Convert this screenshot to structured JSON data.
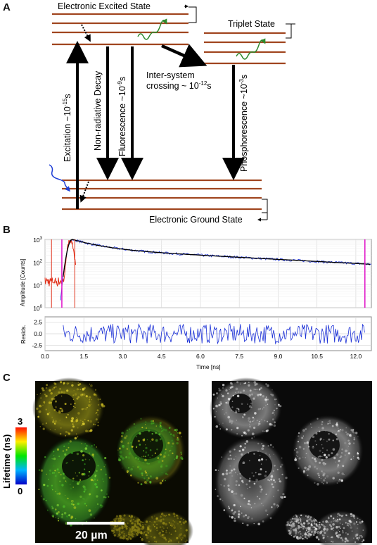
{
  "panels": {
    "a": "A",
    "b": "B",
    "c": "C"
  },
  "jablonski": {
    "excited_state": "Electronic Excited State",
    "triplet_state": "Triplet State",
    "ground_state": "Electronic Ground State",
    "excitation_prefix": "Excitation ~10",
    "excitation_exp": "-15",
    "excitation_unit": "s",
    "nonrad": "Non-radiative Decay",
    "fluor_prefix": "Fluorescence ~10",
    "fluor_exp": "-9",
    "fluor_unit": "s",
    "isc_line1": "Inter-system",
    "isc_line2_prefix": "crossing ~ 10",
    "isc_exp": "-12",
    "isc_unit": "s",
    "phos_prefix": "Phosphorescence ~10",
    "phos_exp": "-3",
    "phos_unit": "s",
    "level_color": "#a0451f",
    "wave_green": "#2e8b2e",
    "wave_blue": "#1f3fd6"
  },
  "decay_plot": {
    "ylabel": "Amplitude [Counts]",
    "resid_label": "Resids.",
    "xlabel": "Time [ns]",
    "x_ticks": [
      "0.0",
      "1.5",
      "3.0",
      "4.5",
      "6.0",
      "7.5",
      "9.0",
      "10.5",
      "12.0"
    ],
    "y_ticks_base": "10",
    "y_ticks_exp": [
      "3",
      "2",
      "1",
      "0"
    ],
    "resid_ticks": [
      "2.5",
      "0.0",
      "-2.5"
    ],
    "data_color": "#1a2fd6",
    "fit_color": "#000000",
    "irf_color": "#e0301a",
    "marker_color": "#e010c8"
  },
  "chart_data": {
    "type": "line",
    "xlabel": "Time [ns]",
    "ylabel": "Amplitude [Counts]",
    "xlim": [
      0,
      12.6
    ],
    "ylim": [
      1,
      1000
    ],
    "y_scale": "log",
    "grid": true,
    "series": [],
    "markers_ns": [
      0.65,
      12.35
    ]
  },
  "microscopy": {
    "scale_bar": "20 µm",
    "colorbar_title": "Lifetime (ns)",
    "colorbar_max": "3",
    "colorbar_min": "0"
  }
}
